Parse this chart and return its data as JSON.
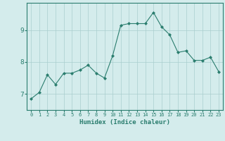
{
  "xlabel": "Humidex (Indice chaleur)",
  "x_values": [
    0,
    1,
    2,
    3,
    4,
    5,
    6,
    7,
    8,
    9,
    10,
    11,
    12,
    13,
    14,
    15,
    16,
    17,
    18,
    19,
    20,
    21,
    22,
    23
  ],
  "y_values": [
    6.85,
    7.05,
    7.6,
    7.3,
    7.65,
    7.65,
    7.75,
    7.9,
    7.65,
    7.5,
    8.2,
    9.15,
    9.2,
    9.2,
    9.2,
    9.55,
    9.1,
    8.85,
    8.3,
    8.35,
    8.05,
    8.05,
    8.15,
    7.7
  ],
  "line_color": "#2a7d6e",
  "marker": "D",
  "marker_size": 2.0,
  "bg_color": "#d4ecec",
  "grid_color": "#aacece",
  "yticks": [
    7,
    8,
    9
  ],
  "ylim": [
    6.5,
    9.85
  ],
  "xlim": [
    -0.5,
    23.5
  ],
  "tick_label_color": "#2a7d6e",
  "xlabel_color": "#2a7d6e",
  "axis_color": "#2a7d6e",
  "figsize": [
    3.2,
    2.0
  ],
  "dpi": 100
}
